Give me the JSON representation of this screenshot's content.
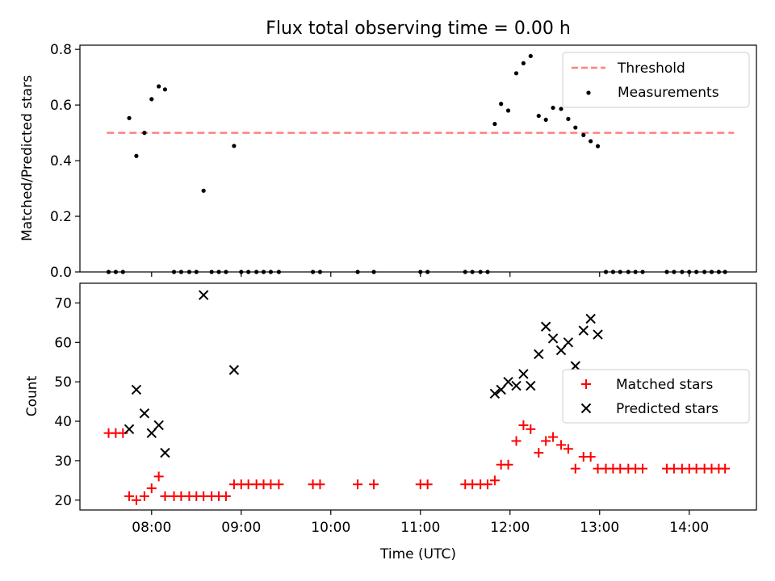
{
  "title": "Flux total observing time = 0.00 h",
  "chart_data": [
    {
      "type": "scatter",
      "ylabel": "Matched/Predicted stars",
      "xlim": [
        7.2,
        14.75
      ],
      "ylim": [
        0,
        0.815
      ],
      "xticks": [
        "08:00",
        "09:00",
        "10:00",
        "11:00",
        "12:00",
        "13:00",
        "14:00"
      ],
      "xtick_values": [
        8,
        9,
        10,
        11,
        12,
        13,
        14
      ],
      "yticks": [
        "0.0",
        "0.2",
        "0.4",
        "0.6",
        "0.8"
      ],
      "ytick_values": [
        0,
        0.2,
        0.4,
        0.6,
        0.8
      ],
      "legend_position": "upper right",
      "threshold": {
        "name": "Threshold",
        "value": 0.5,
        "x_start": 7.5,
        "x_end": 14.5,
        "color": "#ff8080"
      },
      "series": [
        {
          "name": "Measurements",
          "marker": "dot",
          "color": "#000000",
          "points": [
            [
              7.52,
              0
            ],
            [
              7.6,
              0
            ],
            [
              7.68,
              0
            ],
            [
              7.75,
              0.553
            ],
            [
              7.83,
              0.417
            ],
            [
              7.92,
              0.5
            ],
            [
              8.0,
              0.621
            ],
            [
              8.08,
              0.667
            ],
            [
              8.15,
              0.656
            ],
            [
              8.25,
              0
            ],
            [
              8.33,
              0
            ],
            [
              8.42,
              0
            ],
            [
              8.5,
              0
            ],
            [
              8.58,
              0.292
            ],
            [
              8.67,
              0
            ],
            [
              8.75,
              0
            ],
            [
              8.83,
              0
            ],
            [
              8.92,
              0.453
            ],
            [
              9.0,
              0
            ],
            [
              9.08,
              0
            ],
            [
              9.17,
              0
            ],
            [
              9.25,
              0
            ],
            [
              9.33,
              0
            ],
            [
              9.42,
              0
            ],
            [
              9.8,
              0
            ],
            [
              9.88,
              0
            ],
            [
              10.3,
              0
            ],
            [
              10.48,
              0
            ],
            [
              11.0,
              0
            ],
            [
              11.08,
              0
            ],
            [
              11.5,
              0
            ],
            [
              11.58,
              0
            ],
            [
              11.67,
              0
            ],
            [
              11.75,
              0
            ],
            [
              11.83,
              0.532
            ],
            [
              11.9,
              0.604
            ],
            [
              11.98,
              0.58
            ],
            [
              12.07,
              0.714
            ],
            [
              12.15,
              0.75
            ],
            [
              12.23,
              0.776
            ],
            [
              12.32,
              0.561
            ],
            [
              12.4,
              0.547
            ],
            [
              12.48,
              0.59
            ],
            [
              12.57,
              0.586
            ],
            [
              12.65,
              0.55
            ],
            [
              12.73,
              0.519
            ],
            [
              12.82,
              0.492
            ],
            [
              12.9,
              0.47
            ],
            [
              12.98,
              0.452
            ],
            [
              13.07,
              0
            ],
            [
              13.15,
              0
            ],
            [
              13.23,
              0
            ],
            [
              13.32,
              0
            ],
            [
              13.4,
              0
            ],
            [
              13.48,
              0
            ],
            [
              13.75,
              0
            ],
            [
              13.83,
              0
            ],
            [
              13.92,
              0
            ],
            [
              14.0,
              0
            ],
            [
              14.08,
              0
            ],
            [
              14.17,
              0
            ],
            [
              14.25,
              0
            ],
            [
              14.33,
              0
            ],
            [
              14.4,
              0
            ]
          ]
        }
      ]
    },
    {
      "type": "scatter",
      "xlabel": "Time (UTC)",
      "ylabel": "Count",
      "xlim": [
        7.2,
        14.75
      ],
      "ylim": [
        17.5,
        75
      ],
      "xticks": [
        "08:00",
        "09:00",
        "10:00",
        "11:00",
        "12:00",
        "13:00",
        "14:00"
      ],
      "xtick_values": [
        8,
        9,
        10,
        11,
        12,
        13,
        14
      ],
      "yticks": [
        "20",
        "30",
        "40",
        "50",
        "60",
        "70"
      ],
      "ytick_values": [
        20,
        30,
        40,
        50,
        60,
        70
      ],
      "legend_position": "center right",
      "series": [
        {
          "name": "Matched stars",
          "marker": "plus",
          "color": "#ff0000",
          "points": [
            [
              7.52,
              37
            ],
            [
              7.6,
              37
            ],
            [
              7.68,
              37
            ],
            [
              7.75,
              21
            ],
            [
              7.83,
              20
            ],
            [
              7.92,
              21
            ],
            [
              8.0,
              23
            ],
            [
              8.08,
              26
            ],
            [
              8.15,
              21
            ],
            [
              8.25,
              21
            ],
            [
              8.33,
              21
            ],
            [
              8.42,
              21
            ],
            [
              8.5,
              21
            ],
            [
              8.58,
              21
            ],
            [
              8.67,
              21
            ],
            [
              8.75,
              21
            ],
            [
              8.83,
              21
            ],
            [
              8.92,
              24
            ],
            [
              9.0,
              24
            ],
            [
              9.08,
              24
            ],
            [
              9.17,
              24
            ],
            [
              9.25,
              24
            ],
            [
              9.33,
              24
            ],
            [
              9.42,
              24
            ],
            [
              9.8,
              24
            ],
            [
              9.88,
              24
            ],
            [
              10.3,
              24
            ],
            [
              10.48,
              24
            ],
            [
              11.0,
              24
            ],
            [
              11.08,
              24
            ],
            [
              11.5,
              24
            ],
            [
              11.58,
              24
            ],
            [
              11.67,
              24
            ],
            [
              11.75,
              24
            ],
            [
              11.83,
              25
            ],
            [
              11.9,
              29
            ],
            [
              11.98,
              29
            ],
            [
              12.07,
              35
            ],
            [
              12.15,
              39
            ],
            [
              12.23,
              38
            ],
            [
              12.32,
              32
            ],
            [
              12.4,
              35
            ],
            [
              12.48,
              36
            ],
            [
              12.57,
              34
            ],
            [
              12.65,
              33
            ],
            [
              12.73,
              28
            ],
            [
              12.82,
              31
            ],
            [
              12.9,
              31
            ],
            [
              12.98,
              28
            ],
            [
              13.07,
              28
            ],
            [
              13.15,
              28
            ],
            [
              13.23,
              28
            ],
            [
              13.32,
              28
            ],
            [
              13.4,
              28
            ],
            [
              13.48,
              28
            ],
            [
              13.75,
              28
            ],
            [
              13.83,
              28
            ],
            [
              13.92,
              28
            ],
            [
              14.0,
              28
            ],
            [
              14.08,
              28
            ],
            [
              14.17,
              28
            ],
            [
              14.25,
              28
            ],
            [
              14.33,
              28
            ],
            [
              14.4,
              28
            ]
          ]
        },
        {
          "name": "Predicted stars",
          "marker": "x",
          "color": "#000000",
          "points": [
            [
              7.75,
              38
            ],
            [
              7.83,
              48
            ],
            [
              7.92,
              42
            ],
            [
              8.0,
              37
            ],
            [
              8.08,
              39
            ],
            [
              8.15,
              32
            ],
            [
              8.58,
              72
            ],
            [
              8.92,
              53
            ],
            [
              11.83,
              47
            ],
            [
              11.9,
              48
            ],
            [
              11.98,
              50
            ],
            [
              12.07,
              49
            ],
            [
              12.15,
              52
            ],
            [
              12.23,
              49
            ],
            [
              12.32,
              57
            ],
            [
              12.4,
              64
            ],
            [
              12.48,
              61
            ],
            [
              12.57,
              58
            ],
            [
              12.65,
              60
            ],
            [
              12.73,
              54
            ],
            [
              12.82,
              63
            ],
            [
              12.9,
              66
            ],
            [
              12.98,
              62
            ]
          ]
        }
      ]
    }
  ]
}
